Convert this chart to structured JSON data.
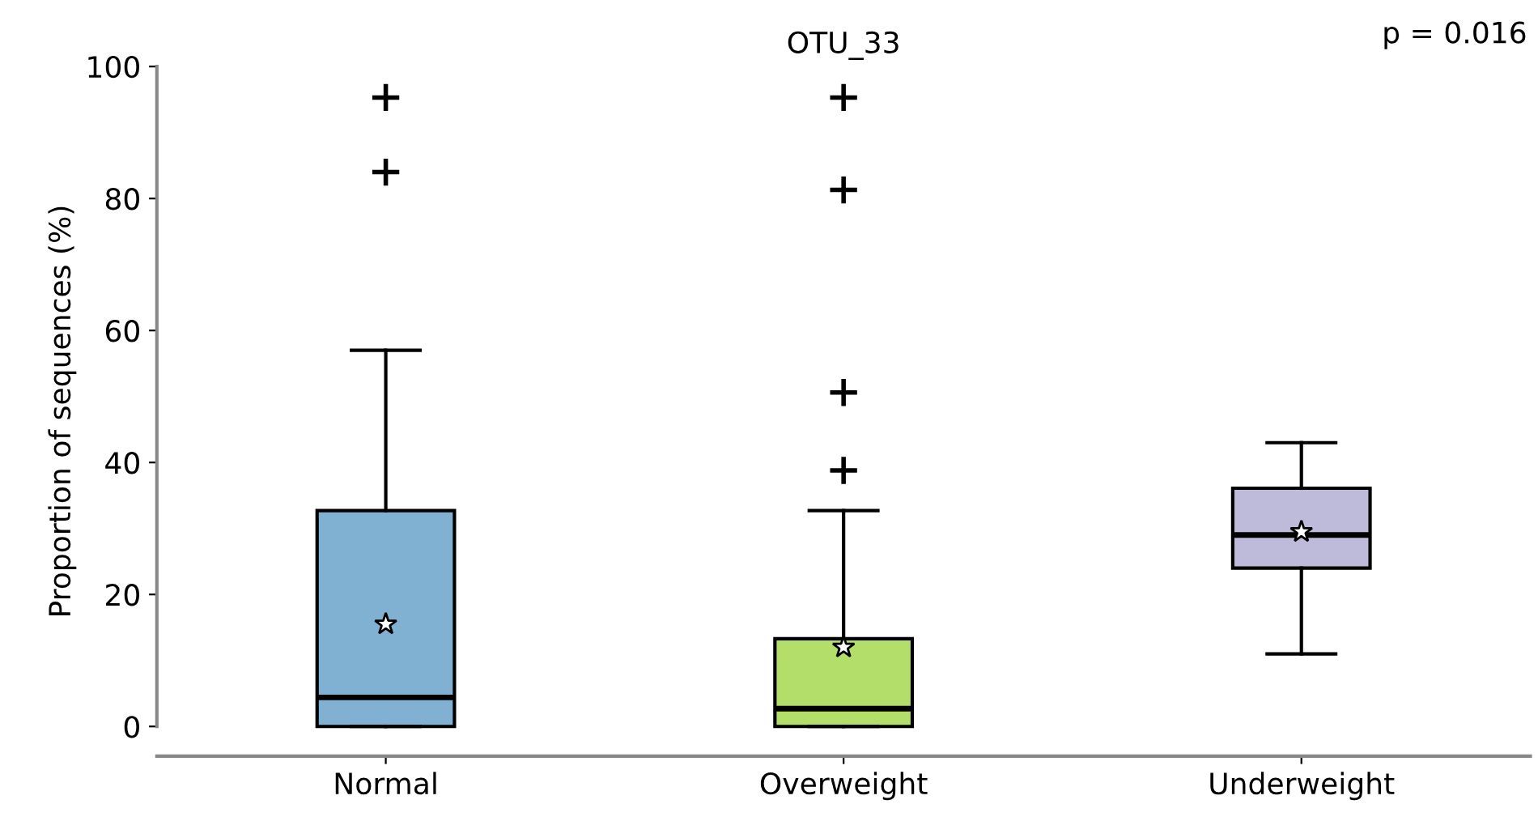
{
  "chart_data": {
    "type": "box",
    "title": "OTU_33",
    "ylabel": "Proportion of sequences (%)",
    "categories": [
      "Normal",
      "Overweight",
      "Underweight"
    ],
    "colors": [
      "#80b1d3",
      "#b3de69",
      "#bebada"
    ],
    "boxes": [
      {
        "low": 0,
        "q1": 0,
        "median": 4.4,
        "q3": 32.7,
        "high": 57,
        "mean": 15.5,
        "outliers": [
          95.3,
          84
        ]
      },
      {
        "low": 0,
        "q1": 0,
        "median": 2.7,
        "q3": 13.3,
        "high": 32.7,
        "mean": 12,
        "outliers": [
          95.3,
          81.3,
          50.6,
          38.8
        ]
      },
      {
        "low": 11,
        "q1": 24,
        "median": 29,
        "q3": 36.1,
        "high": 43,
        "mean": 29.5
      }
    ],
    "ylim": [
      -4.5,
      100
    ],
    "yticks": [
      0,
      20,
      40,
      60,
      80,
      100
    ],
    "annotations": [
      "p = 0.016"
    ],
    "grid": false,
    "legend": false
  }
}
